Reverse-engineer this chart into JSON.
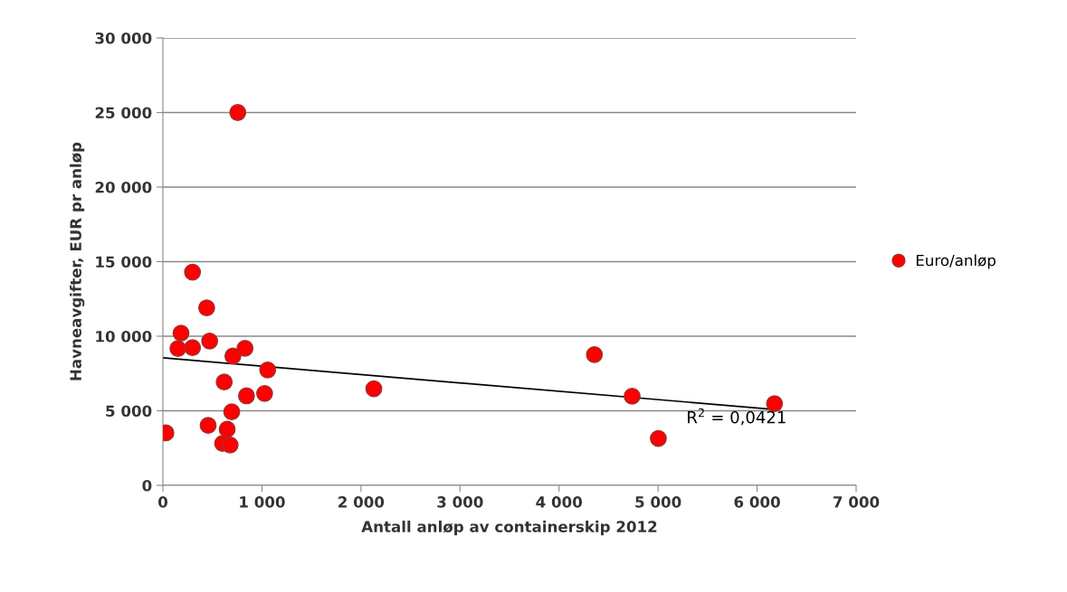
{
  "chart_data": {
    "type": "scatter",
    "xlabel": "Antall anløp av containerskip 2012",
    "ylabel": "Havneavgifter, EUR pr anløp",
    "series": [
      {
        "name": "Euro/anløp",
        "marker": "circle",
        "color": "#ff0000",
        "x": [
          299,
          442,
          183,
          152,
          299,
          472,
          707,
          829,
          1058,
          619,
          844,
          1027,
          695,
          457,
          649,
          30,
          603,
          679,
          756,
          4357,
          4738,
          5003,
          6176,
          2130
        ],
        "values": [
          14300,
          11900,
          10200,
          9170,
          9230,
          9680,
          8670,
          9190,
          7740,
          6930,
          6000,
          6160,
          4930,
          4020,
          3760,
          3520,
          2810,
          2710,
          25000,
          8770,
          5980,
          3150,
          5470,
          6480
        ]
      },
      {
        "type": "line",
        "color": "#000000",
        "x": [
          0,
          6176
        ],
        "values": [
          8550,
          5090
        ]
      }
    ],
    "annotations": [
      "R$^{2}$ = 0,0421"
    ],
    "xlim": [
      0,
      7000
    ],
    "xticks": [
      0,
      {
        "value": 1000,
        "label": "1 000"
      },
      {
        "value": 2000,
        "label": "2 000"
      },
      {
        "value": 3000,
        "label": "3 000"
      },
      {
        "value": 4000,
        "label": "4 000"
      },
      {
        "value": 5000,
        "label": "5 000"
      },
      {
        "value": 6000,
        "label": "6 000"
      },
      {
        "value": 7000,
        "label": "7 000"
      }
    ],
    "ylim": [
      0,
      30000
    ],
    "yticks": [
      0,
      {
        "value": 5000,
        "label": "5 000"
      },
      {
        "value": 10000,
        "label": "10 000"
      },
      {
        "value": 15000,
        "label": "15 000"
      },
      {
        "value": 20000,
        "label": "20 000"
      },
      {
        "value": 25000,
        "label": "25 000"
      },
      {
        "value": 30000,
        "label": "30 000"
      }
    ],
    "grid": "y",
    "legend": "right"
  }
}
